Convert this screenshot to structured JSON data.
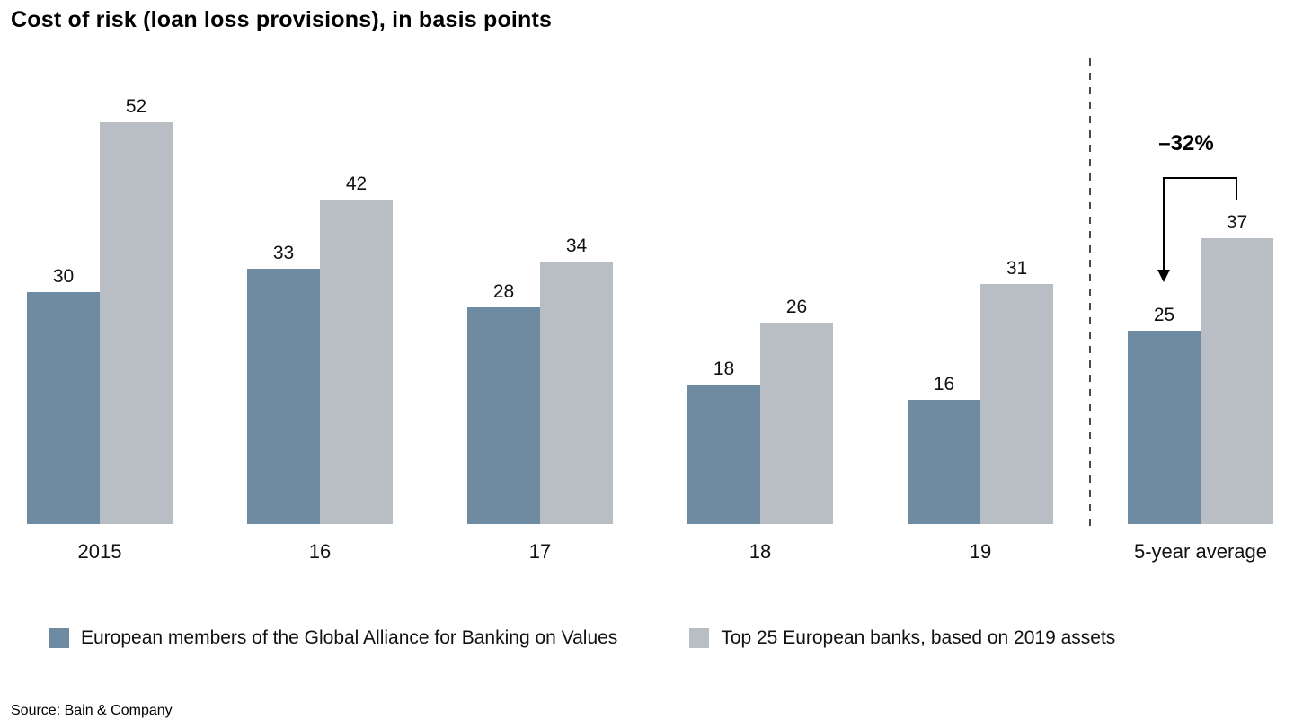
{
  "title": "Cost of risk (loan loss provisions), in basis points",
  "source": "Source: Bain & Company",
  "annotation": {
    "label": "–32%"
  },
  "legend": [
    {
      "label": "European members of the Global Alliance for Banking on Values",
      "color": "#6f8ba2"
    },
    {
      "label": "Top 25 European banks, based on 2019 assets",
      "color": "#b8bec4"
    }
  ],
  "chart_data": {
    "type": "bar",
    "title": "Cost of risk (loan loss provisions), in basis points",
    "ylabel": "basis points",
    "categories": [
      "2015",
      "16",
      "17",
      "18",
      "19",
      "5-year average"
    ],
    "series": [
      {
        "name": "European members of the Global Alliance for Banking on Values",
        "color": "#6f8ba2",
        "values": [
          30,
          33,
          28,
          18,
          16,
          25
        ]
      },
      {
        "name": "Top 25 European banks, based on 2019 assets",
        "color": "#b8bec4",
        "values": [
          52,
          42,
          34,
          26,
          31,
          37
        ]
      }
    ],
    "ylim": [
      0,
      55
    ],
    "grid": false,
    "axis_lines": false,
    "legend_position": "bottom",
    "separator_before_category": "5-year average",
    "annotation": {
      "group": "5-year average",
      "label": "–32%",
      "meaning": "GABV 5-year average (25) is 32% below top-25 banks (37)"
    }
  }
}
